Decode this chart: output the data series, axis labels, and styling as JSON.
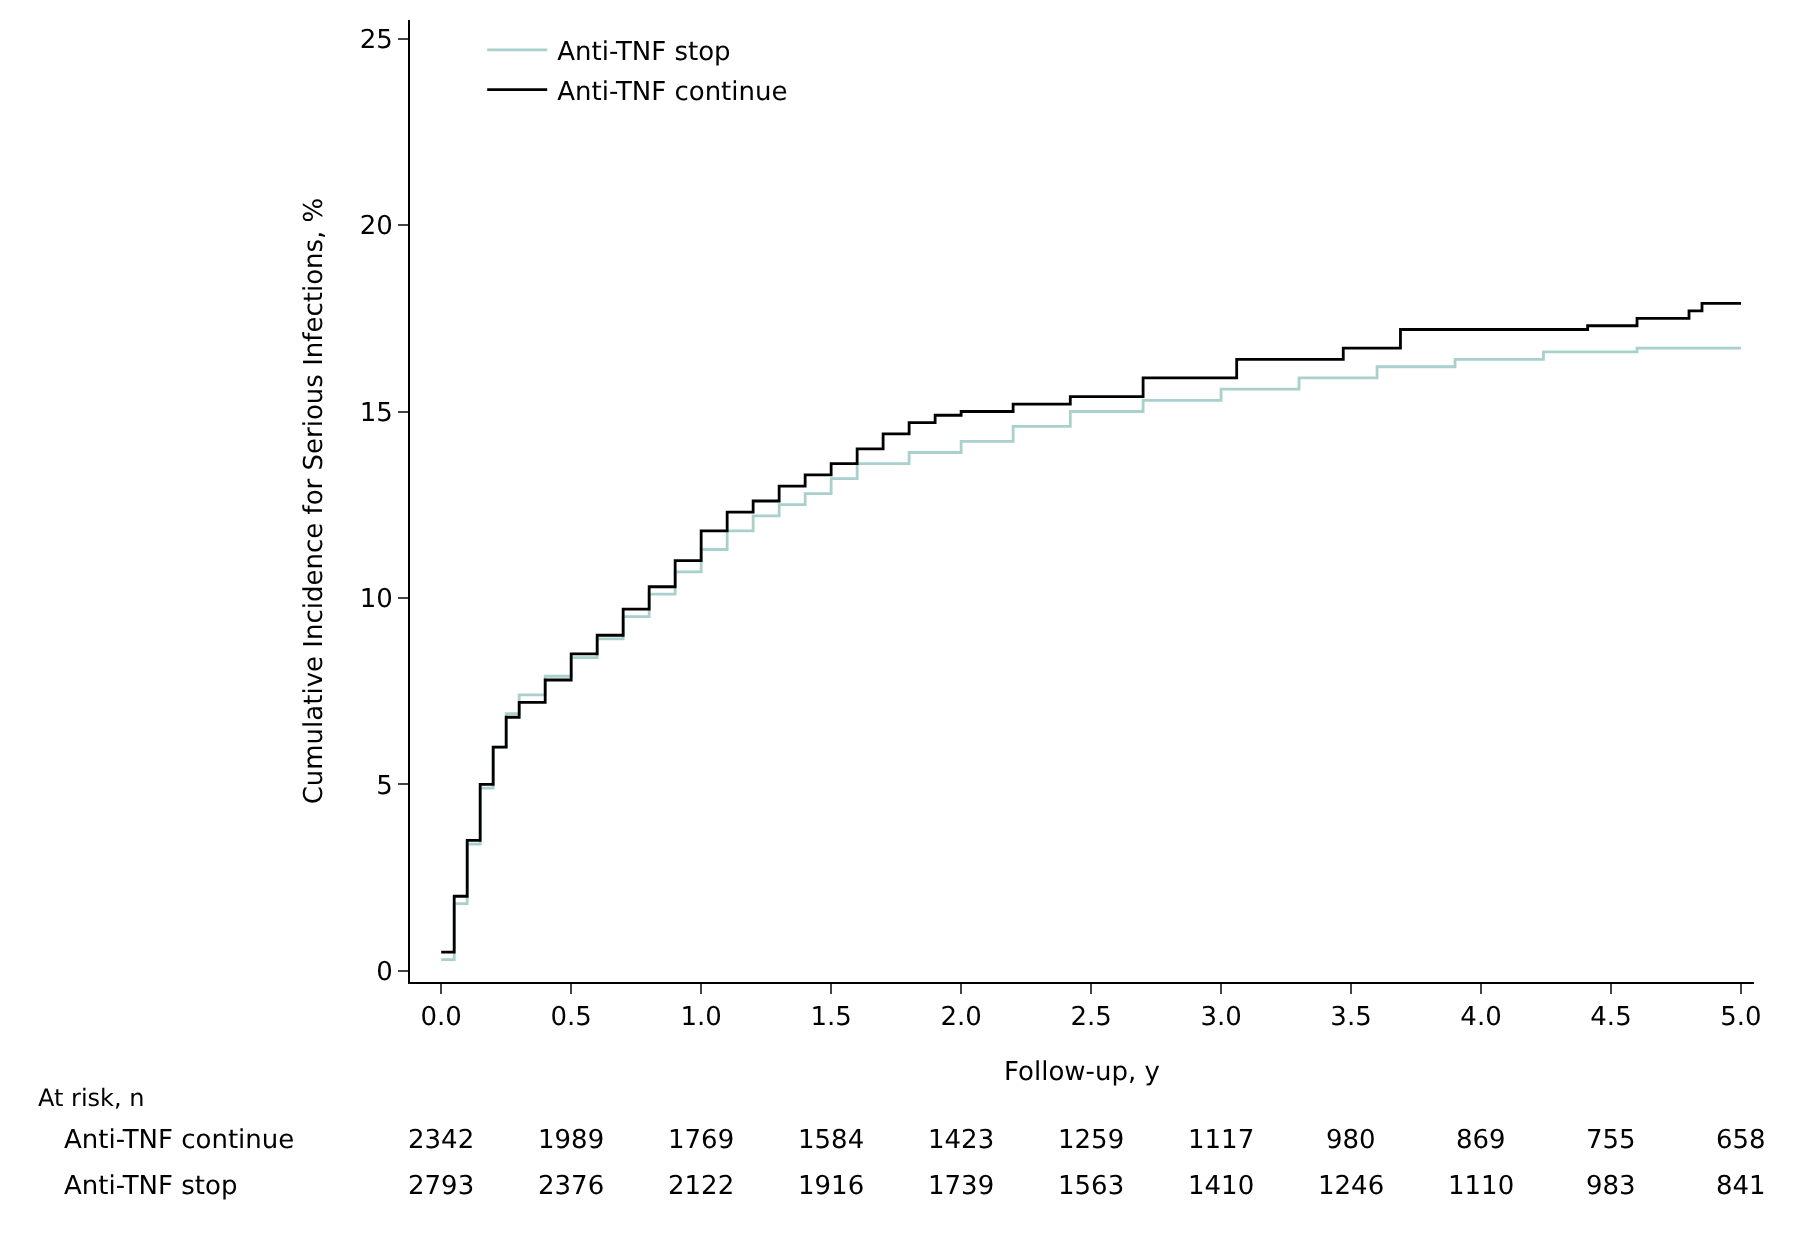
{
  "chart_data": {
    "type": "step",
    "xlabel": "Follow-up, y",
    "ylabel": "Cumulative Incidence for Serious Infections, %",
    "series": [
      {
        "name": "Anti-TNF stop",
        "color": "#a8d0cc",
        "x": [
          0,
          0.05,
          0.1,
          0.15,
          0.2,
          0.25,
          0.3,
          0.4,
          0.5,
          0.6,
          0.7,
          0.8,
          0.9,
          1.0,
          1.1,
          1.2,
          1.3,
          1.4,
          1.5,
          1.6,
          1.8,
          2.0,
          2.2,
          2.42,
          2.7,
          3.0,
          3.3,
          3.6,
          3.9,
          4.24,
          4.6,
          5.0
        ],
        "values": [
          0.3,
          1.8,
          3.4,
          4.9,
          6.0,
          6.9,
          7.4,
          7.9,
          8.4,
          8.9,
          9.5,
          10.1,
          10.7,
          11.3,
          11.8,
          12.2,
          12.5,
          12.8,
          13.2,
          13.6,
          13.9,
          14.2,
          14.6,
          15.0,
          15.3,
          15.6,
          15.9,
          16.2,
          16.4,
          16.6,
          16.7,
          16.7
        ]
      },
      {
        "name": "Anti-TNF continue",
        "color": "#000000",
        "x": [
          0,
          0.05,
          0.1,
          0.15,
          0.2,
          0.25,
          0.3,
          0.4,
          0.5,
          0.6,
          0.7,
          0.8,
          0.9,
          1.0,
          1.1,
          1.2,
          1.3,
          1.4,
          1.5,
          1.6,
          1.7,
          1.8,
          1.9,
          2.0,
          2.2,
          2.42,
          2.7,
          3.06,
          3.47,
          3.69,
          4.41,
          4.6,
          4.8,
          4.85,
          5.0
        ],
        "values": [
          0.5,
          2.0,
          3.5,
          5.0,
          6.0,
          6.8,
          7.2,
          7.8,
          8.5,
          9.0,
          9.7,
          10.3,
          11.0,
          11.8,
          12.3,
          12.6,
          13.0,
          13.3,
          13.6,
          14.0,
          14.4,
          14.7,
          14.9,
          15.0,
          15.2,
          15.4,
          15.9,
          16.4,
          16.7,
          17.2,
          17.3,
          17.5,
          17.7,
          17.9,
          17.9
        ]
      }
    ],
    "xlim": [
      -0.12,
      5.05
    ],
    "xticks": [
      {
        "value": 0,
        "label": "0.0"
      },
      0.5,
      {
        "value": 1,
        "label": "1.0"
      },
      1.5,
      {
        "value": 2,
        "label": "2.0"
      },
      2.5,
      {
        "value": 3,
        "label": "3.0"
      },
      3.5,
      {
        "value": 4,
        "label": "4.0"
      },
      4.5,
      {
        "value": 5,
        "label": "5.0"
      }
    ],
    "ylim": [
      -0.3,
      25.5
    ],
    "yticks": [
      0,
      5,
      10,
      15,
      20,
      25
    ],
    "legend": "top left",
    "annotations": [
      "At risk, n",
      "Anti-TNF continue",
      "2342",
      "1989",
      "1769",
      "1584",
      "1423",
      "1259",
      "1117",
      "980",
      "869",
      "755",
      "658",
      "Anti-TNF stop",
      "2793",
      "2376",
      "2122",
      "1916",
      "1739",
      "1563",
      "1410",
      "1246",
      "1110",
      "983",
      "841"
    ]
  }
}
